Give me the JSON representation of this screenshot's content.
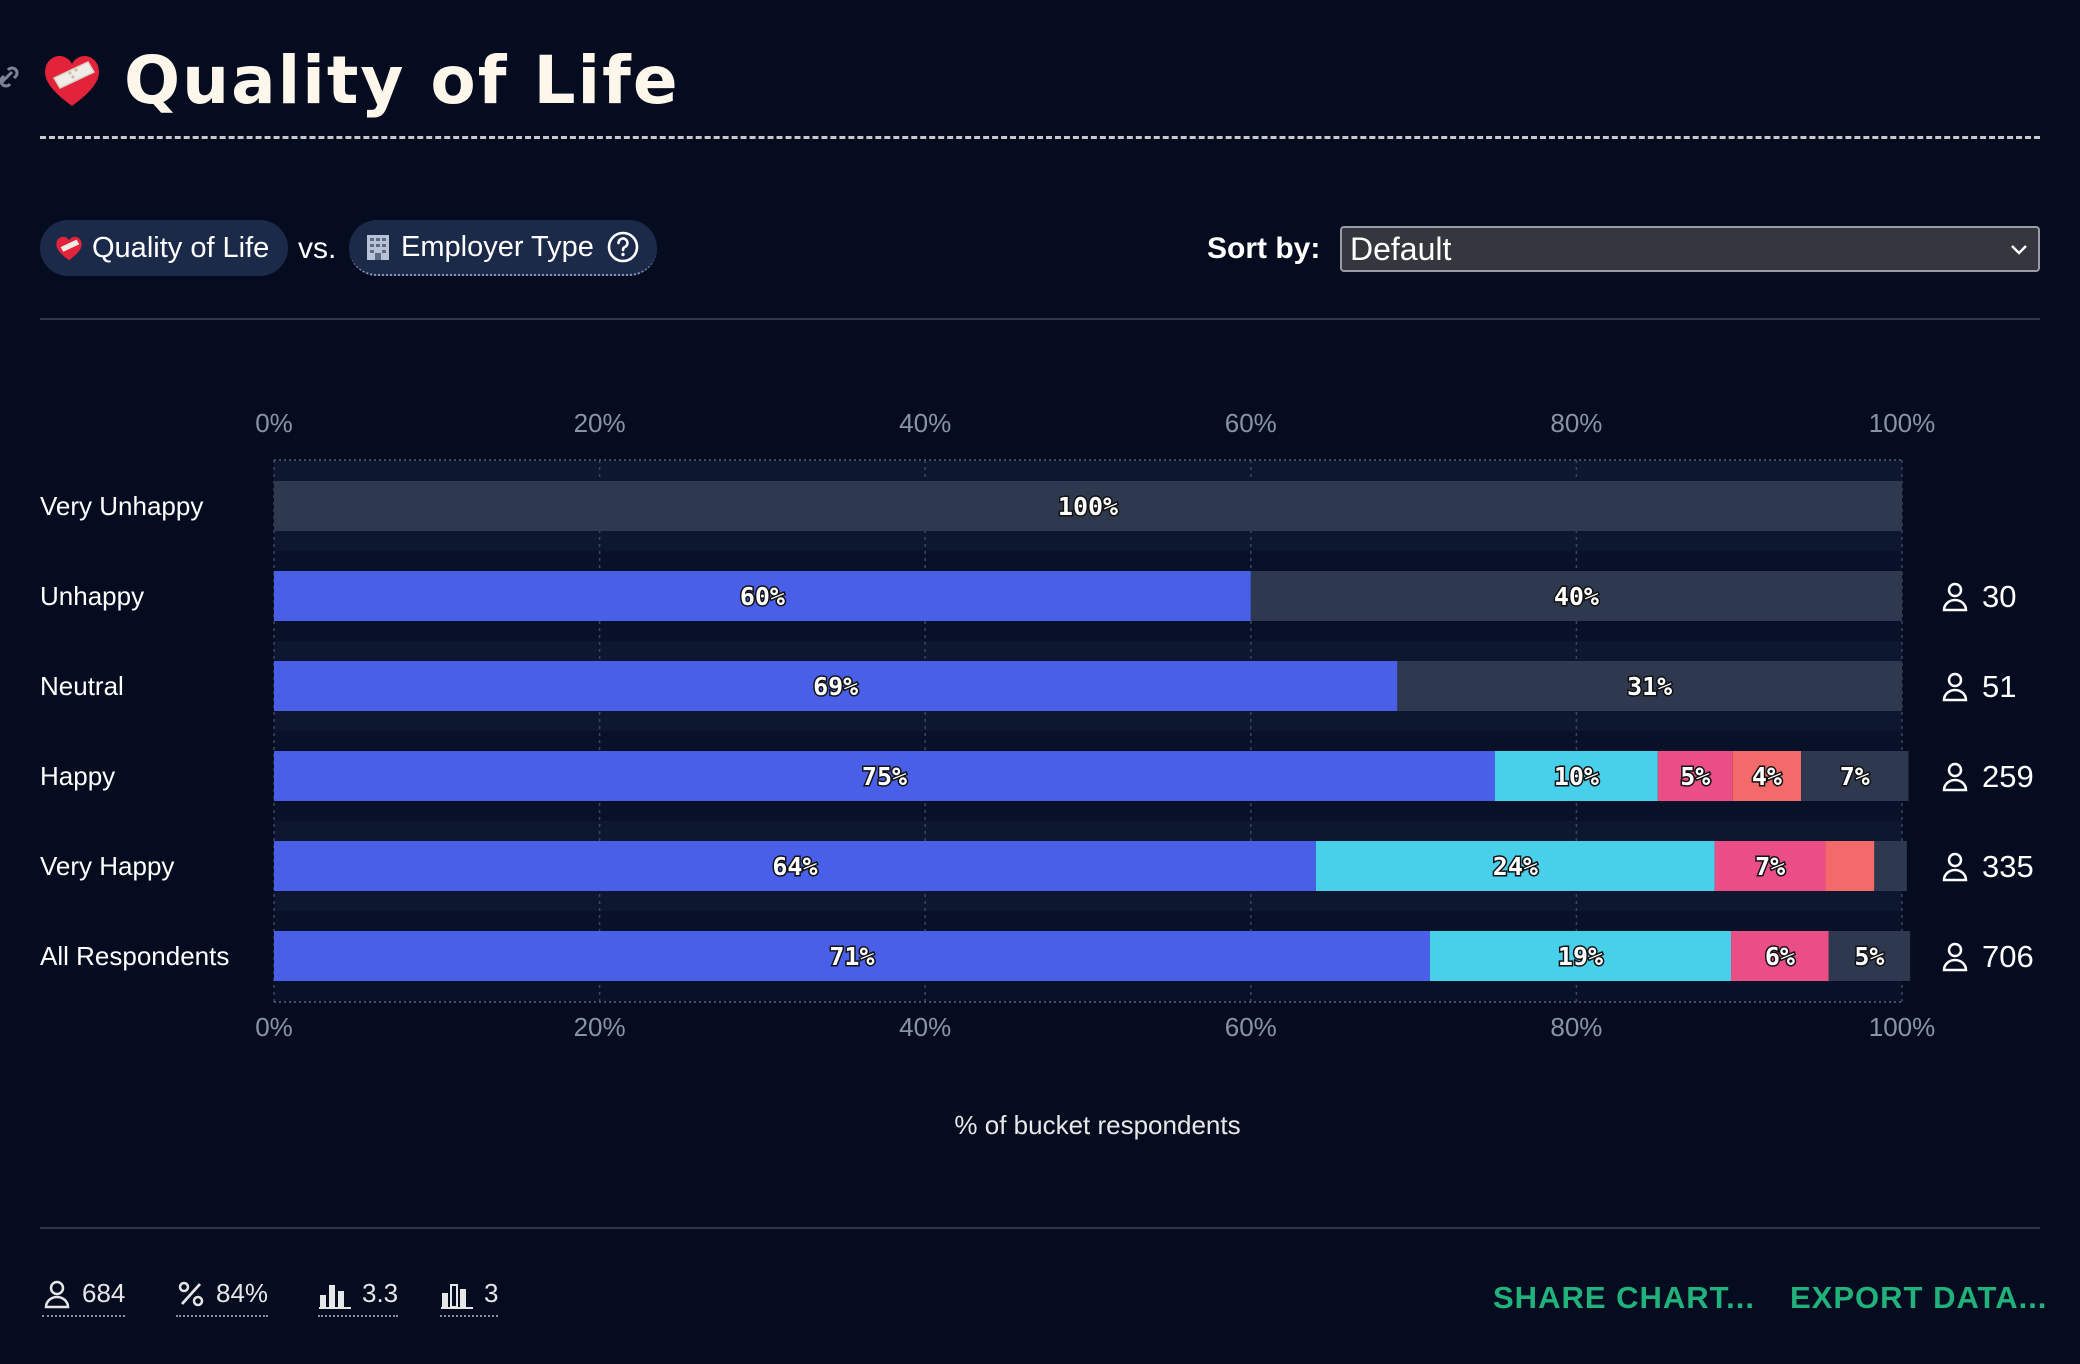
{
  "title": "Quality of Life",
  "controls": {
    "metric_label": "Quality of Life",
    "vs_label": "vs.",
    "compare_label": "Employer Type",
    "sort_label": "Sort by:",
    "sort_value": "Default"
  },
  "chart_data": {
    "type": "bar",
    "orientation": "horizontal",
    "stacked": true,
    "categories": [
      "Very Unhappy",
      "Unhappy",
      "Neutral",
      "Happy",
      "Very Happy",
      "All Respondents"
    ],
    "x_ticks": [
      "0%",
      "20%",
      "40%",
      "60%",
      "80%",
      "100%"
    ],
    "xlim": [
      0,
      100
    ],
    "xlabel": "% of bucket respondents",
    "grid": true,
    "respondent_counts": [
      "",
      "30",
      "51",
      "259",
      "335",
      "706"
    ],
    "series": [
      {
        "values": [
          0,
          60,
          69,
          75,
          64,
          71
        ],
        "labels": [
          "",
          "60%",
          "69%",
          "75%",
          "64%",
          "71%"
        ],
        "color": "#4a5fe8"
      },
      {
        "values": [
          0,
          0,
          0,
          10,
          24.5,
          18.5
        ],
        "labels": [
          "",
          "",
          "",
          "10%",
          "24%",
          "19%"
        ],
        "color": "#48cfea"
      },
      {
        "values": [
          0,
          0,
          0,
          4.6,
          6.8,
          6
        ],
        "labels": [
          "",
          "",
          "",
          "5%",
          "7%",
          "6%"
        ],
        "color": "#eb4d86"
      },
      {
        "values": [
          0,
          0,
          0,
          4.2,
          3,
          0
        ],
        "labels": [
          "",
          "",
          "",
          "4%",
          "",
          ""
        ],
        "color": "#f4696a"
      },
      {
        "values": [
          100,
          40,
          31,
          6.6,
          2,
          5
        ],
        "labels": [
          "100%",
          "40%",
          "31%",
          "7%",
          "",
          "5%"
        ],
        "color": "#2e3950"
      }
    ]
  },
  "footer": {
    "respondents": "684",
    "percent": "84%",
    "average": "3.3",
    "bucket_count": "3",
    "share_label": "SHARE CHART...",
    "export_label": "EXPORT DATA..."
  }
}
